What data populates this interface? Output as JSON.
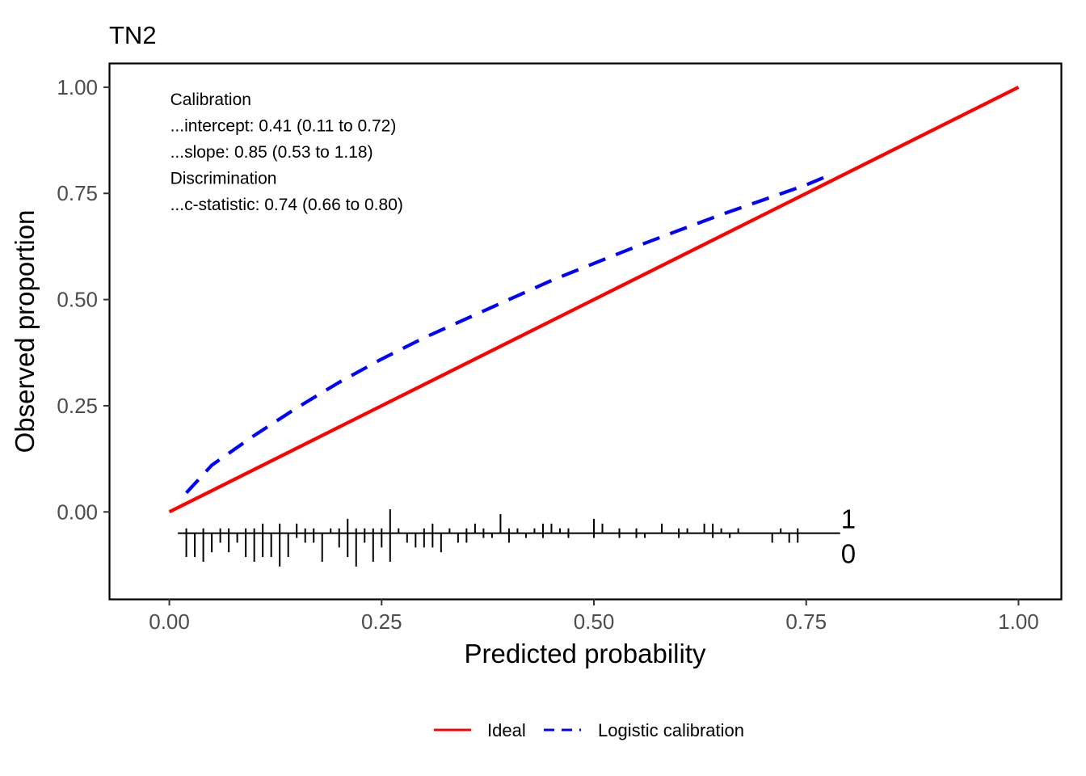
{
  "chart_data": {
    "type": "line",
    "title": "TN2",
    "xlabel": "Predicted probability",
    "ylabel": "Observed proportion",
    "xlim": [
      -0.07,
      1.05
    ],
    "ylim": [
      -0.205,
      1.055
    ],
    "x_ticks": [
      0,
      0.25,
      0.5,
      0.75,
      1
    ],
    "x_tick_labels": [
      "0.00",
      "0.25",
      "0.50",
      "0.75",
      "1.00"
    ],
    "y_ticks": [
      0,
      0.25,
      0.5,
      0.75,
      1
    ],
    "y_tick_labels": [
      "0.00",
      "0.25",
      "0.50",
      "0.75",
      "1.00"
    ],
    "grid": false,
    "legend_position": "bottom",
    "series": [
      {
        "name": "Ideal",
        "color": "#ff0000",
        "dash": "solid",
        "x": [
          0,
          1
        ],
        "y": [
          0,
          1
        ]
      },
      {
        "name": "Logistic calibration",
        "color": "#0000ff",
        "dash": "dashed",
        "x": [
          0.02,
          0.05,
          0.1,
          0.15,
          0.2,
          0.25,
          0.3,
          0.35,
          0.4,
          0.45,
          0.5,
          0.55,
          0.6,
          0.65,
          0.7,
          0.75,
          0.78
        ],
        "y": [
          0.045,
          0.11,
          0.18,
          0.245,
          0.305,
          0.36,
          0.41,
          0.455,
          0.5,
          0.545,
          0.585,
          0.625,
          0.663,
          0.7,
          0.735,
          0.77,
          0.795
        ]
      }
    ],
    "annotations": [
      "Calibration",
      "...intercept: 0.41 (0.11 to 0.72)",
      "...slope: 0.85 (0.53 to 1.18)",
      "Discrimination",
      "...c-statistic: 0.74 (0.66 to 0.80)"
    ],
    "rug": {
      "baseline": -0.05,
      "x_range": [
        0.01,
        0.79
      ],
      "label_event": "1",
      "label_nonevent": "0",
      "events": [
        {
          "x": 0.02,
          "n": 1
        },
        {
          "x": 0.04,
          "n": 1
        },
        {
          "x": 0.06,
          "n": 1
        },
        {
          "x": 0.07,
          "n": 1
        },
        {
          "x": 0.09,
          "n": 1
        },
        {
          "x": 0.1,
          "n": 1
        },
        {
          "x": 0.11,
          "n": 2
        },
        {
          "x": 0.13,
          "n": 2
        },
        {
          "x": 0.15,
          "n": 2
        },
        {
          "x": 0.16,
          "n": 1
        },
        {
          "x": 0.17,
          "n": 1
        },
        {
          "x": 0.19,
          "n": 1
        },
        {
          "x": 0.2,
          "n": 1
        },
        {
          "x": 0.21,
          "n": 3
        },
        {
          "x": 0.22,
          "n": 1
        },
        {
          "x": 0.23,
          "n": 1
        },
        {
          "x": 0.24,
          "n": 1
        },
        {
          "x": 0.25,
          "n": 1
        },
        {
          "x": 0.26,
          "n": 5
        },
        {
          "x": 0.27,
          "n": 1
        },
        {
          "x": 0.3,
          "n": 1
        },
        {
          "x": 0.31,
          "n": 2
        },
        {
          "x": 0.33,
          "n": 1
        },
        {
          "x": 0.35,
          "n": 1
        },
        {
          "x": 0.36,
          "n": 2
        },
        {
          "x": 0.37,
          "n": 1
        },
        {
          "x": 0.39,
          "n": 4
        },
        {
          "x": 0.4,
          "n": 1
        },
        {
          "x": 0.41,
          "n": 1
        },
        {
          "x": 0.43,
          "n": 1
        },
        {
          "x": 0.44,
          "n": 2
        },
        {
          "x": 0.45,
          "n": 2
        },
        {
          "x": 0.46,
          "n": 1
        },
        {
          "x": 0.47,
          "n": 1
        },
        {
          "x": 0.5,
          "n": 3
        },
        {
          "x": 0.51,
          "n": 2
        },
        {
          "x": 0.53,
          "n": 1
        },
        {
          "x": 0.55,
          "n": 1
        },
        {
          "x": 0.58,
          "n": 2
        },
        {
          "x": 0.6,
          "n": 1
        },
        {
          "x": 0.61,
          "n": 1
        },
        {
          "x": 0.63,
          "n": 2
        },
        {
          "x": 0.64,
          "n": 2
        },
        {
          "x": 0.65,
          "n": 1
        },
        {
          "x": 0.67,
          "n": 1
        },
        {
          "x": 0.72,
          "n": 1
        },
        {
          "x": 0.74,
          "n": 1
        }
      ],
      "nonevents": [
        {
          "x": 0.02,
          "n": 5
        },
        {
          "x": 0.03,
          "n": 5
        },
        {
          "x": 0.04,
          "n": 6
        },
        {
          "x": 0.05,
          "n": 4
        },
        {
          "x": 0.06,
          "n": 2
        },
        {
          "x": 0.07,
          "n": 4
        },
        {
          "x": 0.08,
          "n": 2
        },
        {
          "x": 0.09,
          "n": 5
        },
        {
          "x": 0.1,
          "n": 6
        },
        {
          "x": 0.11,
          "n": 5
        },
        {
          "x": 0.12,
          "n": 5
        },
        {
          "x": 0.13,
          "n": 7
        },
        {
          "x": 0.14,
          "n": 5
        },
        {
          "x": 0.15,
          "n": 1
        },
        {
          "x": 0.16,
          "n": 2
        },
        {
          "x": 0.17,
          "n": 2
        },
        {
          "x": 0.18,
          "n": 6
        },
        {
          "x": 0.2,
          "n": 3
        },
        {
          "x": 0.21,
          "n": 5
        },
        {
          "x": 0.22,
          "n": 7
        },
        {
          "x": 0.23,
          "n": 2
        },
        {
          "x": 0.24,
          "n": 6
        },
        {
          "x": 0.25,
          "n": 3
        },
        {
          "x": 0.26,
          "n": 6
        },
        {
          "x": 0.28,
          "n": 2
        },
        {
          "x": 0.29,
          "n": 3
        },
        {
          "x": 0.3,
          "n": 3
        },
        {
          "x": 0.31,
          "n": 3
        },
        {
          "x": 0.32,
          "n": 4
        },
        {
          "x": 0.34,
          "n": 2
        },
        {
          "x": 0.35,
          "n": 2
        },
        {
          "x": 0.37,
          "n": 1
        },
        {
          "x": 0.38,
          "n": 1
        },
        {
          "x": 0.4,
          "n": 2
        },
        {
          "x": 0.42,
          "n": 1
        },
        {
          "x": 0.44,
          "n": 1
        },
        {
          "x": 0.47,
          "n": 1
        },
        {
          "x": 0.5,
          "n": 1
        },
        {
          "x": 0.53,
          "n": 1
        },
        {
          "x": 0.55,
          "n": 1
        },
        {
          "x": 0.56,
          "n": 1
        },
        {
          "x": 0.6,
          "n": 1
        },
        {
          "x": 0.64,
          "n": 1
        },
        {
          "x": 0.66,
          "n": 1
        },
        {
          "x": 0.71,
          "n": 2
        },
        {
          "x": 0.73,
          "n": 2
        },
        {
          "x": 0.74,
          "n": 2
        }
      ]
    }
  }
}
